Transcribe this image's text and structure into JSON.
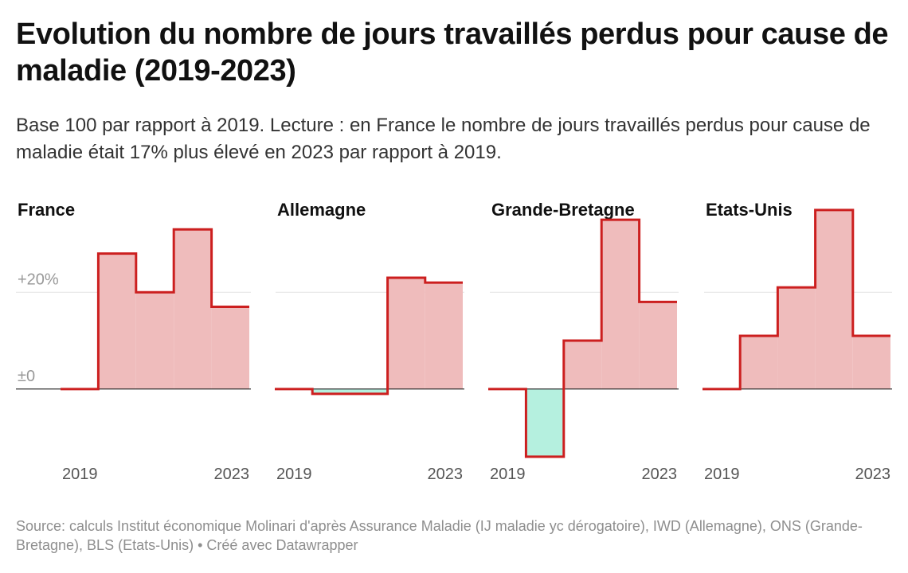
{
  "title": "Evolution du nombre de jours travaillés perdus pour cause de maladie (2019-2023)",
  "subtitle": "Base 100 par rapport à 2019. Lecture : en France le nombre de jours travaillés perdus pour cause de maladie était 17% plus élevé en 2023 par rapport à 2019.",
  "footer": {
    "source": "Source: calculs Institut économique Molinari d'après Assurance Maladie (IJ maladie yc dérogatoire), IWD (Allemagne), ONS (Grande-Bretagne), BLS (Etats-Unis)",
    "credit": "• Créé avec Datawrapper"
  },
  "colors": {
    "line": "#cc1f1f",
    "positive_fill": "#efbcbc",
    "negative_fill": "#b5f0df",
    "baseline": "#222222",
    "gridline": "#e3e3e3",
    "tick_label": "#999999",
    "axis_label": "#555555"
  },
  "chart_data": [
    {
      "type": "area",
      "subtype": "step",
      "title": "France",
      "x": [
        2019,
        2020,
        2021,
        2022,
        2023
      ],
      "values": [
        0,
        28,
        20,
        33,
        17
      ],
      "ylim": [
        -15,
        36
      ],
      "yticks": [
        0,
        20
      ],
      "ytick_labels": [
        "±0",
        "+20%"
      ],
      "xtick_labels": [
        "2019",
        "2023"
      ],
      "grid": true
    },
    {
      "type": "area",
      "subtype": "step",
      "title": "Allemagne",
      "x": [
        2019,
        2020,
        2021,
        2022,
        2023
      ],
      "values": [
        0,
        -1,
        -1,
        23,
        22
      ],
      "ylim": [
        -15,
        36
      ],
      "yticks": [
        0,
        20
      ],
      "xtick_labels": [
        "2019",
        "2023"
      ],
      "grid": true
    },
    {
      "type": "area",
      "subtype": "step",
      "title": "Grande-Bretagne",
      "x": [
        2019,
        2020,
        2021,
        2022,
        2023
      ],
      "values": [
        0,
        -14,
        10,
        35,
        18
      ],
      "ylim": [
        -15,
        36
      ],
      "yticks": [
        0,
        20
      ],
      "xtick_labels": [
        "2019",
        "2023"
      ],
      "grid": true
    },
    {
      "type": "area",
      "subtype": "step",
      "title": "Etats-Unis",
      "x": [
        2019,
        2020,
        2021,
        2022,
        2023
      ],
      "values": [
        0,
        11,
        21,
        37,
        11
      ],
      "ylim": [
        -15,
        36
      ],
      "yticks": [
        0,
        20
      ],
      "xtick_labels": [
        "2019",
        "2023"
      ],
      "grid": true
    }
  ]
}
